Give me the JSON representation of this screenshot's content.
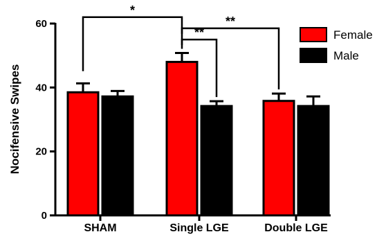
{
  "chart_data": {
    "type": "bar",
    "ylabel": "Nocifensive Swipes",
    "xlabel": "",
    "ylim": [
      0,
      60
    ],
    "yticks": [
      0,
      20,
      40,
      60
    ],
    "categories": [
      "SHAM",
      "Single LGE",
      "Double LGE"
    ],
    "series": [
      {
        "name": "Female",
        "color": "#ff0000",
        "values": [
          38.5,
          48.0,
          35.8
        ],
        "errors": [
          2.8,
          2.8,
          2.3
        ]
      },
      {
        "name": "Male",
        "color": "#000000",
        "values": [
          37.2,
          34.2,
          34.2
        ],
        "errors": [
          1.7,
          1.5,
          3.0
        ]
      }
    ],
    "legend": {
      "position": "top-right",
      "entries": [
        "Female",
        "Male"
      ]
    },
    "grid": false,
    "significance": [
      {
        "label": "*",
        "from": {
          "category": 0,
          "series": 0
        },
        "to": {
          "category": 1,
          "series": 0
        },
        "level": 62
      },
      {
        "label": "**",
        "from": {
          "category": 1,
          "series": 0
        },
        "to": {
          "category": 1,
          "series": 1
        },
        "level": 55
      },
      {
        "label": "**",
        "from": {
          "category": 1,
          "series": 0
        },
        "to": {
          "category": 2,
          "series": 0
        },
        "level": 58.5
      }
    ]
  }
}
